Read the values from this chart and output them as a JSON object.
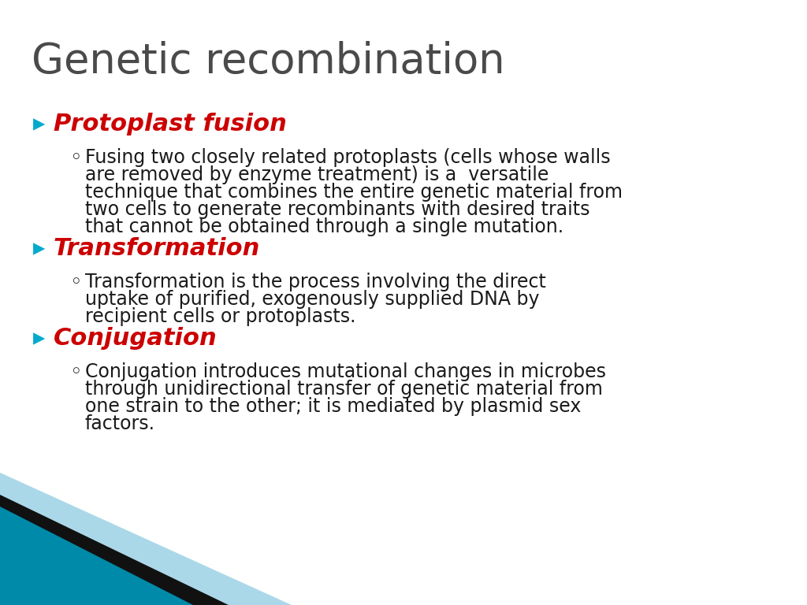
{
  "title": "Genetic recombination",
  "title_color": "#4a4a4a",
  "title_fontsize": 38,
  "background_color": "#ffffff",
  "bullet_color": "#00aacc",
  "heading_color": "#cc0000",
  "body_color": "#1a1a1a",
  "items": [
    {
      "heading": "Protoplast fusion",
      "body": "Fusing two closely related protoplasts (cells whose walls\nare removed by enzyme treatment) is a  versatile\ntechnique that combines the entire genetic material from\ntwo cells to generate recombinants with desired traits\nthat cannot be obtained through a single mutation."
    },
    {
      "heading": "Transformation",
      "body": "Transformation is the process involving the direct\nuptake of purified, exogenously supplied DNA by\nrecipient cells or protoplasts."
    },
    {
      "heading": "Conjugation",
      "body": "Conjugation introduces mutational changes in microbes\nthrough unidirectional transfer of genetic material from\none strain to the other; it is mediated by plasmid sex\nfactors."
    }
  ],
  "heading_fontsize": 22,
  "body_fontsize": 17,
  "corner_teal": "#008aaa",
  "corner_black": "#111111",
  "corner_light": "#aad8e8"
}
